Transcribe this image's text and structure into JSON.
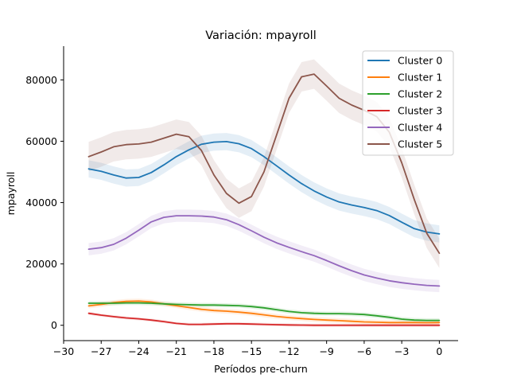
{
  "chart_data": {
    "type": "line",
    "title": "Variación: mpayroll",
    "xlabel": "Períodos pre-churn",
    "ylabel": "mpayroll",
    "xlim": [
      -30,
      1.5
    ],
    "ylim": [
      -5000,
      91000
    ],
    "xticks": [
      -30,
      -27,
      -24,
      -21,
      -18,
      -15,
      -12,
      -9,
      -6,
      -3,
      0
    ],
    "xtick_labels": [
      "−30",
      "−27",
      "−24",
      "−21",
      "−18",
      "−15",
      "−12",
      "−9",
      "−6",
      "−3",
      "0"
    ],
    "yticks": [
      0,
      20000,
      40000,
      60000,
      80000
    ],
    "ytick_labels": [
      "0",
      "20000",
      "40000",
      "60000",
      "80000"
    ],
    "grid": false,
    "legend_position": "top-right",
    "x": [
      -28,
      -27,
      -26,
      -25,
      -24,
      -23,
      -22,
      -21,
      -20,
      -19,
      -18,
      -17,
      -16,
      -15,
      -14,
      -13,
      -12,
      -11,
      -10,
      -9,
      -8,
      -7,
      -6,
      -5,
      -4,
      -3,
      -2,
      -1,
      0
    ],
    "series": [
      {
        "name": "Cluster 0",
        "color": "#1f77b4",
        "band": 2800,
        "values": [
          51000,
          50200,
          49000,
          48000,
          48200,
          49800,
          52300,
          55000,
          57200,
          59000,
          59700,
          59900,
          59200,
          57600,
          55000,
          52000,
          49000,
          46200,
          43800,
          41800,
          40200,
          39200,
          38400,
          37400,
          35800,
          33600,
          31500,
          30400,
          29800
        ]
      },
      {
        "name": "Cluster 1",
        "color": "#ff7f0e",
        "band": 800,
        "values": [
          6300,
          6800,
          7400,
          7800,
          7900,
          7600,
          7000,
          6400,
          5800,
          5200,
          4800,
          4600,
          4300,
          3900,
          3400,
          2900,
          2500,
          2200,
          1900,
          1700,
          1500,
          1300,
          1100,
          1000,
          900,
          900,
          900,
          850,
          900
        ]
      },
      {
        "name": "Cluster 2",
        "color": "#2ca02c",
        "band": 700,
        "values": [
          7200,
          7200,
          7200,
          7300,
          7300,
          7200,
          7000,
          6800,
          6700,
          6600,
          6600,
          6500,
          6400,
          6100,
          5700,
          5100,
          4500,
          4100,
          3900,
          3800,
          3800,
          3700,
          3500,
          3100,
          2600,
          2000,
          1700,
          1600,
          1600
        ]
      },
      {
        "name": "Cluster 3",
        "color": "#d62728",
        "band": 500,
        "values": [
          3900,
          3300,
          2800,
          2400,
          2100,
          1700,
          1200,
          600,
          300,
          300,
          400,
          500,
          500,
          400,
          300,
          200,
          100,
          50,
          0,
          0,
          0,
          0,
          0,
          0,
          0,
          0,
          0,
          0,
          0
        ]
      },
      {
        "name": "Cluster 4",
        "color": "#9467bd",
        "band": 2000,
        "values": [
          24800,
          25300,
          26400,
          28400,
          31000,
          33700,
          35200,
          35700,
          35700,
          35600,
          35300,
          34400,
          32800,
          30800,
          28700,
          26900,
          25400,
          24000,
          22700,
          21100,
          19400,
          17800,
          16400,
          15400,
          14500,
          13900,
          13400,
          13000,
          12800
        ]
      },
      {
        "name": "Cluster 5",
        "color": "#8c564b",
        "band": 4800,
        "values": [
          55000,
          56500,
          58200,
          58900,
          59100,
          59700,
          61000,
          62300,
          61500,
          57000,
          49000,
          43000,
          39800,
          42000,
          50000,
          62000,
          74000,
          81000,
          81900,
          78000,
          74000,
          71800,
          70100,
          68000,
          63000,
          53000,
          41000,
          30000,
          23500
        ]
      }
    ]
  }
}
